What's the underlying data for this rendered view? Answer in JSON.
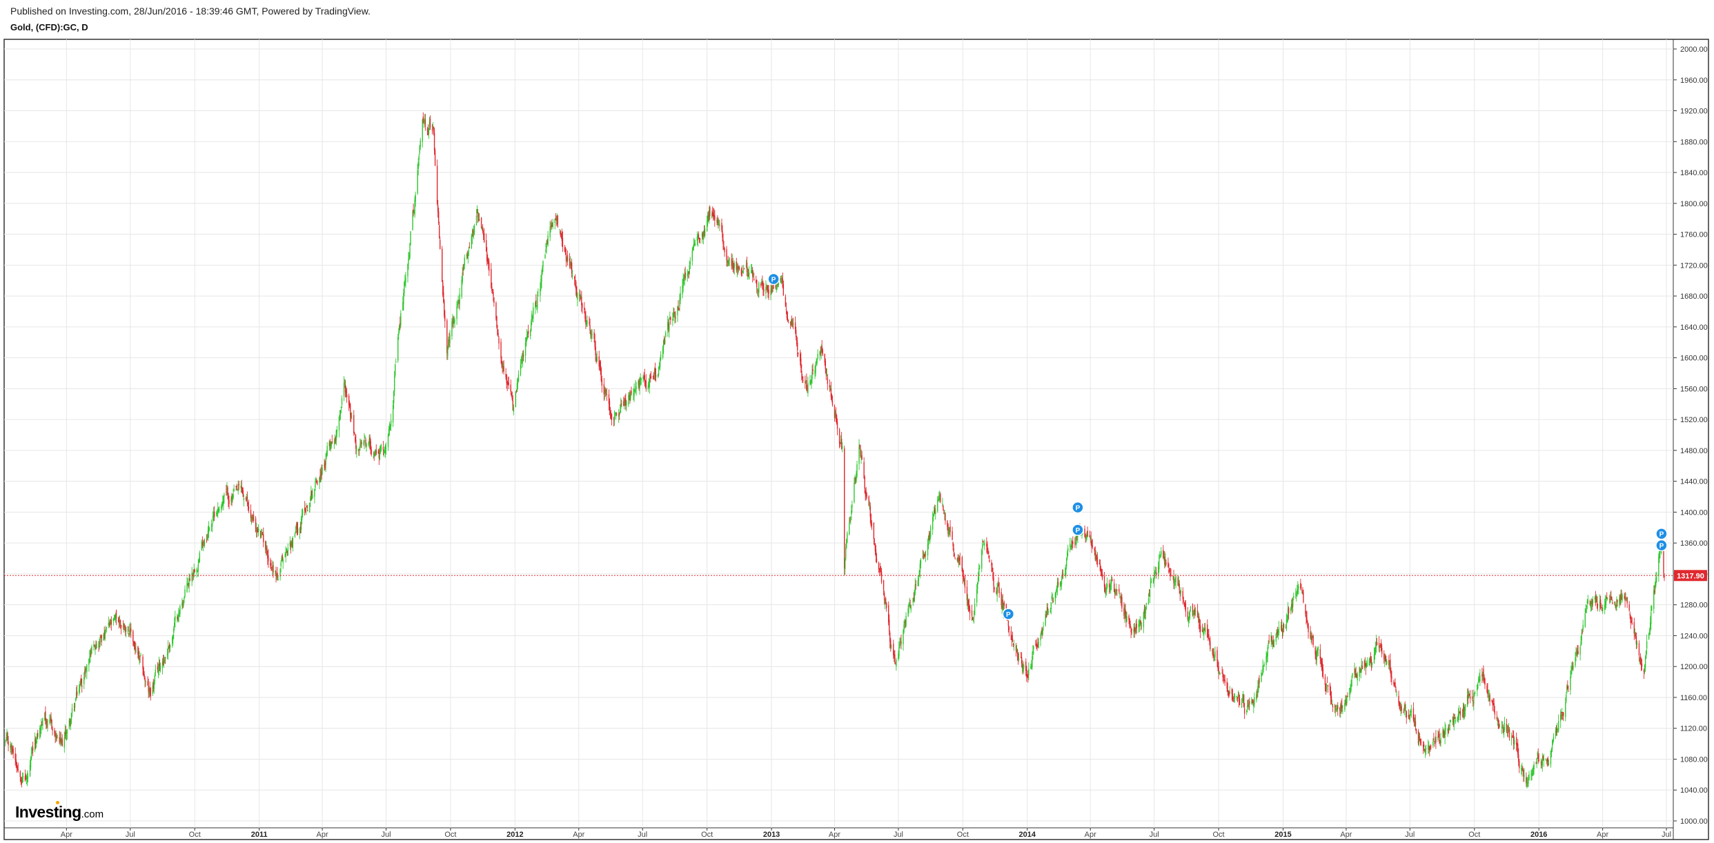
{
  "header": {
    "published": "Published on Investing.com, 28/Jun/2016 - 18:39:46 GMT, Powered by TradingView.",
    "symbol": "Gold, (CFD):GC, D"
  },
  "brand": {
    "name": "Investing",
    "suffix": ".com"
  },
  "colors": {
    "up": "#2fc62f",
    "down": "#e0282e",
    "price_line": "#e0282e",
    "marker": "#1e8fe6"
  },
  "chart_data": {
    "type": "candlestick",
    "interval": "D",
    "ylim": [
      1000,
      2000
    ],
    "y_ticks": [
      "2000.00",
      "1960.00",
      "1920.00",
      "1880.00",
      "1840.00",
      "1800.00",
      "1760.00",
      "1720.00",
      "1680.00",
      "1640.00",
      "1600.00",
      "1560.00",
      "1520.00",
      "1480.00",
      "1440.00",
      "1400.00",
      "1360.00",
      "1320.00",
      "1280.00",
      "1240.00",
      "1200.00",
      "1160.00",
      "1120.00",
      "1080.00",
      "1040.00",
      "1000.00"
    ],
    "x_ticks": [
      {
        "label": "Apr",
        "date": "2010-04-01",
        "year": false
      },
      {
        "label": "Jul",
        "date": "2010-07-01",
        "year": false
      },
      {
        "label": "Oct",
        "date": "2010-10-01",
        "year": false
      },
      {
        "label": "2011",
        "date": "2011-01-01",
        "year": true
      },
      {
        "label": "Apr",
        "date": "2011-04-01",
        "year": false
      },
      {
        "label": "Jul",
        "date": "2011-07-01",
        "year": false
      },
      {
        "label": "Oct",
        "date": "2011-10-01",
        "year": false
      },
      {
        "label": "2012",
        "date": "2012-01-01",
        "year": true
      },
      {
        "label": "Apr",
        "date": "2012-04-01",
        "year": false
      },
      {
        "label": "Jul",
        "date": "2012-07-01",
        "year": false
      },
      {
        "label": "Oct",
        "date": "2012-10-01",
        "year": false
      },
      {
        "label": "2013",
        "date": "2013-01-01",
        "year": true
      },
      {
        "label": "Apr",
        "date": "2013-04-01",
        "year": false
      },
      {
        "label": "Jul",
        "date": "2013-07-01",
        "year": false
      },
      {
        "label": "Oct",
        "date": "2013-10-01",
        "year": false
      },
      {
        "label": "2014",
        "date": "2014-01-01",
        "year": true
      },
      {
        "label": "Apr",
        "date": "2014-04-01",
        "year": false
      },
      {
        "label": "Jul",
        "date": "2014-07-01",
        "year": false
      },
      {
        "label": "Oct",
        "date": "2014-10-01",
        "year": false
      },
      {
        "label": "2015",
        "date": "2015-01-01",
        "year": true
      },
      {
        "label": "Apr",
        "date": "2015-04-01",
        "year": false
      },
      {
        "label": "Jul",
        "date": "2015-07-01",
        "year": false
      },
      {
        "label": "Oct",
        "date": "2015-10-01",
        "year": false
      },
      {
        "label": "2016",
        "date": "2016-01-01",
        "year": true
      },
      {
        "label": "Apr",
        "date": "2016-04-01",
        "year": false
      },
      {
        "label": "Jul",
        "date": "2016-07-01",
        "year": false
      }
    ],
    "date_range": [
      "2010-01-04",
      "2016-06-28"
    ],
    "last_price": 1317.9,
    "last_price_label": "1317.90",
    "close_path": [
      [
        "2010-01-04",
        1100
      ],
      [
        "2010-02-05",
        1058
      ],
      [
        "2010-03-01",
        1135
      ],
      [
        "2010-03-25",
        1090
      ],
      [
        "2010-05-12",
        1240
      ],
      [
        "2010-06-28",
        1255
      ],
      [
        "2010-07-28",
        1158
      ],
      [
        "2010-09-01",
        1250
      ],
      [
        "2010-10-15",
        1375
      ],
      [
        "2010-11-09",
        1420
      ],
      [
        "2010-12-07",
        1418
      ],
      [
        "2011-01-28",
        1318
      ],
      [
        "2011-04-20",
        1505
      ],
      [
        "2011-05-02",
        1575
      ],
      [
        "2011-05-20",
        1480
      ],
      [
        "2011-07-01",
        1485
      ],
      [
        "2011-08-10",
        1800
      ],
      [
        "2011-08-22",
        1900
      ],
      [
        "2011-09-06",
        1905
      ],
      [
        "2011-09-26",
        1600
      ],
      [
        "2011-11-08",
        1795
      ],
      [
        "2011-12-29",
        1530
      ],
      [
        "2012-02-28",
        1790
      ],
      [
        "2012-05-15",
        1535
      ],
      [
        "2012-07-15",
        1570
      ],
      [
        "2012-10-04",
        1795
      ],
      [
        "2012-11-15",
        1712
      ],
      [
        "2013-01-15",
        1690
      ],
      [
        "2013-02-20",
        1565
      ],
      [
        "2013-03-15",
        1605
      ],
      [
        "2013-04-12",
        1480
      ],
      [
        "2013-04-15",
        1330
      ],
      [
        "2013-05-06",
        1475
      ],
      [
        "2013-06-27",
        1195
      ],
      [
        "2013-08-28",
        1420
      ],
      [
        "2013-10-15",
        1270
      ],
      [
        "2013-10-29",
        1355
      ],
      [
        "2013-12-31",
        1195
      ],
      [
        "2014-03-14",
        1385
      ],
      [
        "2014-06-02",
        1245
      ],
      [
        "2014-07-10",
        1340
      ],
      [
        "2014-09-30",
        1205
      ],
      [
        "2014-11-07",
        1140
      ],
      [
        "2015-01-22",
        1300
      ],
      [
        "2015-03-17",
        1145
      ],
      [
        "2015-05-18",
        1225
      ],
      [
        "2015-07-24",
        1080
      ],
      [
        "2015-10-14",
        1190
      ],
      [
        "2015-12-17",
        1050
      ],
      [
        "2016-01-28",
        1120
      ],
      [
        "2016-03-10",
        1275
      ],
      [
        "2016-05-02",
        1300
      ],
      [
        "2016-05-30",
        1200
      ],
      [
        "2016-06-24",
        1360
      ],
      [
        "2016-06-28",
        1317.9
      ]
    ],
    "markers": [
      {
        "label": "P",
        "date": "2013-01-04",
        "value": 1702
      },
      {
        "label": "P",
        "date": "2013-12-05",
        "value": 1268
      },
      {
        "label": "P",
        "date": "2014-03-14",
        "value": 1406
      },
      {
        "label": "P",
        "date": "2014-03-14",
        "value": 1377
      },
      {
        "label": "P",
        "date": "2016-06-24",
        "value": 1372
      },
      {
        "label": "P",
        "date": "2016-06-24",
        "value": 1357
      }
    ]
  }
}
